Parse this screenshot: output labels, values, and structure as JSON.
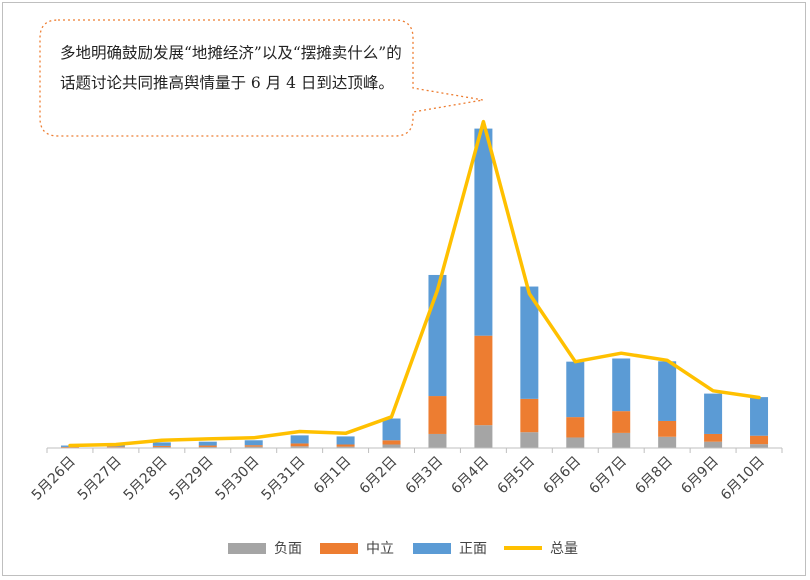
{
  "callout": {
    "text": "多地明确鼓励发展“地摊经济”以及“摆摊卖什么”的话题讨论共同推高舆情量于 6 月 4 日到达顶峰。"
  },
  "colors": {
    "负面": "#a5a5a5",
    "中立": "#ed7d31",
    "正面": "#5b9bd5",
    "总量": "#ffc000",
    "callout_border": "#ed7d31",
    "axis": "#bfbfbf"
  },
  "legend": [
    "负面",
    "中立",
    "正面",
    "总量"
  ],
  "chart_data": {
    "type": "bar",
    "stacked": true,
    "categories": [
      "5月26日",
      "5月27日",
      "5月28日",
      "5月29日",
      "5月30日",
      "5月31日",
      "6月1日",
      "6月2日",
      "6月3日",
      "6月4日",
      "6月5日",
      "6月6日",
      "6月7日",
      "6月8日",
      "6月9日",
      "6月10日"
    ],
    "series": [
      {
        "name": "负面",
        "type": "bar",
        "values": [
          0.1,
          0.2,
          0.3,
          0.3,
          0.4,
          0.5,
          0.4,
          1.0,
          4.0,
          6.5,
          4.5,
          3.0,
          4.3,
          3.2,
          1.8,
          1.1
        ]
      },
      {
        "name": "中立",
        "type": "bar",
        "values": [
          0.2,
          0.2,
          0.3,
          0.4,
          0.4,
          0.8,
          0.6,
          1.2,
          10.8,
          25.5,
          9.5,
          5.8,
          6.2,
          4.5,
          2.2,
          2.4
        ]
      },
      {
        "name": "正面",
        "type": "bar",
        "values": [
          0.4,
          0.6,
          1.0,
          1.1,
          1.4,
          2.3,
          2.3,
          6.2,
          34.5,
          59.0,
          32.0,
          15.8,
          15.0,
          17.0,
          11.5,
          11.0
        ]
      },
      {
        "name": "总量",
        "type": "line",
        "values": [
          0.7,
          1.0,
          2.2,
          2.6,
          2.9,
          4.7,
          4.2,
          8.9,
          45.0,
          93.0,
          44.0,
          24.6,
          27.0,
          25.0,
          16.3,
          14.4
        ]
      }
    ],
    "ylim": [
      0,
      100
    ],
    "grid": false,
    "legend_position": "bottom",
    "xlabel": "",
    "ylabel": ""
  }
}
